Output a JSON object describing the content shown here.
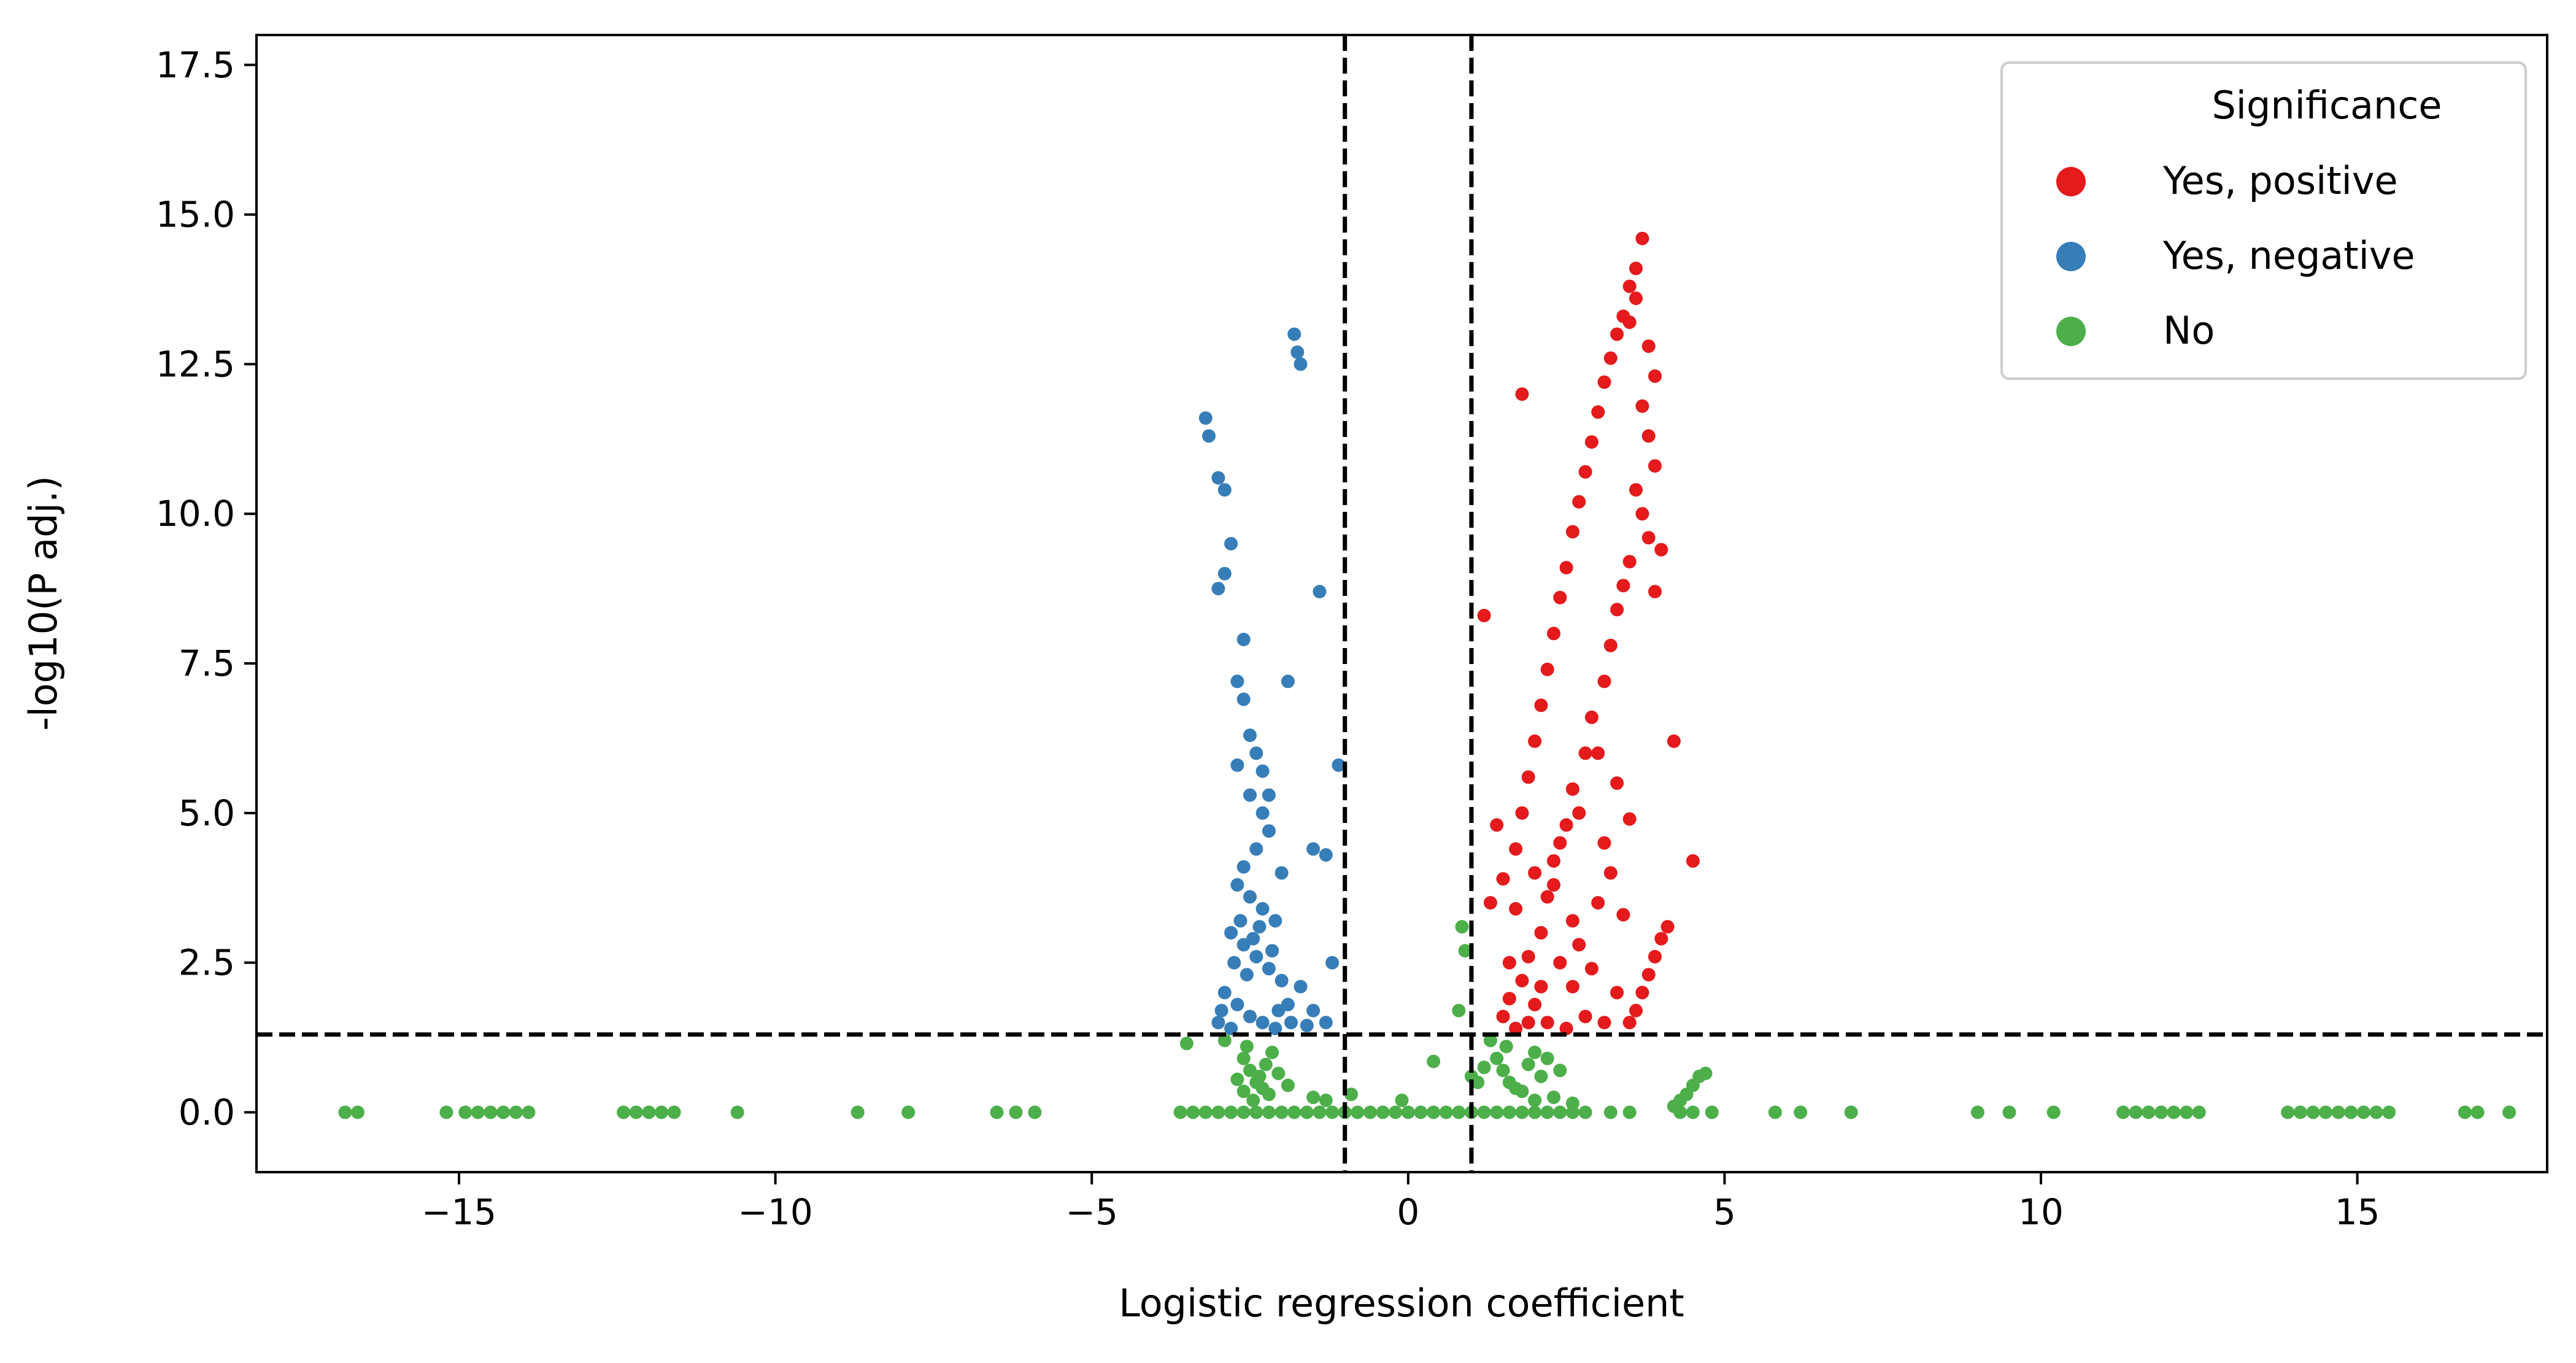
{
  "chart_data": {
    "type": "scatter",
    "xlabel": "Logistic regression coefficient",
    "ylabel": "-log10(P adj.)",
    "xlim": [
      -18.2,
      18.0
    ],
    "ylim": [
      -1.0,
      18.0
    ],
    "xticks": [
      -15,
      -10,
      -5,
      0,
      5,
      10,
      15
    ],
    "xtick_labels": [
      "−15",
      "−10",
      "−5",
      "0",
      "5",
      "10",
      "15"
    ],
    "yticks": [
      0.0,
      2.5,
      5.0,
      7.5,
      10.0,
      12.5,
      15.0,
      17.5
    ],
    "ytick_labels": [
      "0.0",
      "2.5",
      "5.0",
      "7.5",
      "10.0",
      "12.5",
      "15.0",
      "17.5"
    ],
    "reference_lines": {
      "vertical_x": [
        -1,
        1
      ],
      "horizontal_y": [
        1.3
      ]
    },
    "legend": {
      "title": "Significance",
      "placement": "top-right",
      "entries": [
        "Yes, positive",
        "Yes, negative",
        "No"
      ]
    },
    "grid": false,
    "series": [
      {
        "name": "Yes, positive",
        "color": "#e41a1c",
        "points": [
          [
            1.8,
            12.0
          ],
          [
            1.2,
            8.3
          ],
          [
            4.2,
            6.2
          ],
          [
            4.5,
            4.2
          ],
          [
            3.6,
            14.1
          ],
          [
            3.7,
            14.6
          ],
          [
            3.5,
            13.8
          ],
          [
            3.4,
            13.3
          ],
          [
            3.3,
            13.0
          ],
          [
            3.2,
            12.6
          ],
          [
            3.1,
            12.2
          ],
          [
            3.0,
            11.7
          ],
          [
            2.9,
            11.2
          ],
          [
            2.8,
            10.7
          ],
          [
            2.7,
            10.2
          ],
          [
            2.6,
            9.7
          ],
          [
            2.5,
            9.1
          ],
          [
            2.4,
            8.6
          ],
          [
            2.3,
            8.0
          ],
          [
            2.2,
            7.4
          ],
          [
            2.1,
            6.8
          ],
          [
            2.0,
            6.2
          ],
          [
            1.9,
            5.6
          ],
          [
            1.8,
            5.0
          ],
          [
            1.7,
            4.4
          ],
          [
            3.6,
            13.6
          ],
          [
            3.5,
            13.2
          ],
          [
            3.8,
            12.8
          ],
          [
            3.9,
            12.3
          ],
          [
            3.7,
            11.8
          ],
          [
            3.8,
            11.3
          ],
          [
            3.9,
            10.8
          ],
          [
            3.6,
            10.4
          ],
          [
            3.7,
            10.0
          ],
          [
            3.8,
            9.6
          ],
          [
            3.5,
            9.2
          ],
          [
            3.4,
            8.8
          ],
          [
            3.3,
            8.4
          ],
          [
            3.9,
            8.7
          ],
          [
            4.0,
            9.4
          ],
          [
            3.2,
            7.8
          ],
          [
            3.1,
            7.2
          ],
          [
            2.9,
            6.6
          ],
          [
            2.8,
            6.0
          ],
          [
            2.6,
            5.4
          ],
          [
            2.5,
            4.8
          ],
          [
            2.3,
            4.2
          ],
          [
            2.2,
            3.6
          ],
          [
            2.1,
            3.0
          ],
          [
            1.9,
            2.6
          ],
          [
            1.8,
            2.2
          ],
          [
            1.6,
            1.9
          ],
          [
            1.5,
            1.6
          ],
          [
            1.7,
            3.4
          ],
          [
            1.4,
            4.8
          ],
          [
            1.5,
            3.9
          ],
          [
            2.4,
            4.5
          ],
          [
            2.6,
            3.2
          ],
          [
            2.7,
            2.8
          ],
          [
            2.9,
            2.4
          ],
          [
            3.0,
            3.5
          ],
          [
            3.2,
            4.0
          ],
          [
            3.3,
            2.0
          ],
          [
            3.5,
            1.5
          ],
          [
            3.6,
            1.7
          ],
          [
            3.7,
            2.0
          ],
          [
            3.8,
            2.3
          ],
          [
            4.0,
            2.9
          ],
          [
            4.1,
            3.1
          ],
          [
            3.9,
            2.6
          ],
          [
            2.0,
            1.8
          ],
          [
            2.2,
            1.5
          ],
          [
            2.5,
            1.4
          ],
          [
            2.8,
            1.6
          ],
          [
            3.1,
            1.5
          ],
          [
            1.3,
            3.5
          ],
          [
            2.0,
            4.0
          ],
          [
            2.3,
            3.8
          ],
          [
            2.7,
            5.0
          ],
          [
            3.0,
            6.0
          ],
          [
            3.1,
            4.5
          ],
          [
            3.3,
            5.5
          ],
          [
            3.5,
            4.9
          ],
          [
            3.4,
            3.3
          ],
          [
            2.4,
            2.5
          ],
          [
            1.6,
            2.5
          ],
          [
            1.7,
            1.4
          ],
          [
            1.9,
            1.5
          ],
          [
            2.1,
            2.1
          ],
          [
            2.6,
            2.1
          ]
        ]
      },
      {
        "name": "Yes, negative",
        "color": "#377eb8",
        "points": [
          [
            -1.8,
            13.0
          ],
          [
            -1.75,
            12.7
          ],
          [
            -1.7,
            12.5
          ],
          [
            -3.2,
            11.6
          ],
          [
            -3.15,
            11.3
          ],
          [
            -3.0,
            10.6
          ],
          [
            -2.9,
            10.4
          ],
          [
            -2.8,
            9.5
          ],
          [
            -2.9,
            9.0
          ],
          [
            -3.0,
            8.75
          ],
          [
            -1.4,
            8.7
          ],
          [
            -2.6,
            7.9
          ],
          [
            -2.7,
            7.2
          ],
          [
            -2.6,
            6.9
          ],
          [
            -2.5,
            6.3
          ],
          [
            -2.4,
            6.0
          ],
          [
            -2.3,
            5.7
          ],
          [
            -2.7,
            5.8
          ],
          [
            -1.1,
            5.8
          ],
          [
            -2.5,
            5.3
          ],
          [
            -2.3,
            5.0
          ],
          [
            -2.2,
            4.7
          ],
          [
            -2.4,
            4.4
          ],
          [
            -2.6,
            4.1
          ],
          [
            -1.5,
            4.4
          ],
          [
            -1.3,
            4.3
          ],
          [
            -2.7,
            3.8
          ],
          [
            -2.5,
            3.6
          ],
          [
            -2.3,
            3.4
          ],
          [
            -2.1,
            3.2
          ],
          [
            -2.8,
            3.0
          ],
          [
            -2.6,
            2.8
          ],
          [
            -2.4,
            2.6
          ],
          [
            -2.2,
            2.4
          ],
          [
            -2.0,
            2.2
          ],
          [
            -2.9,
            2.0
          ],
          [
            -2.7,
            1.8
          ],
          [
            -2.5,
            1.6
          ],
          [
            -2.3,
            1.5
          ],
          [
            -2.1,
            1.4
          ],
          [
            -1.9,
            1.8
          ],
          [
            -1.7,
            2.1
          ],
          [
            -1.5,
            1.7
          ],
          [
            -1.3,
            1.5
          ],
          [
            -1.2,
            2.5
          ],
          [
            -1.9,
            7.2
          ],
          [
            -2.2,
            5.3
          ],
          [
            -2.0,
            4.0
          ],
          [
            -2.8,
            1.4
          ],
          [
            -3.0,
            1.5
          ],
          [
            -2.65,
            3.2
          ],
          [
            -2.45,
            2.9
          ],
          [
            -2.35,
            3.1
          ],
          [
            -2.55,
            2.3
          ],
          [
            -2.15,
            2.7
          ],
          [
            -2.05,
            1.7
          ],
          [
            -1.85,
            1.5
          ],
          [
            -2.75,
            2.5
          ],
          [
            -2.95,
            1.7
          ],
          [
            -1.6,
            1.45
          ]
        ]
      },
      {
        "name": "No",
        "color": "#4daf4a",
        "points": [
          [
            -16.8,
            0
          ],
          [
            -16.6,
            0
          ],
          [
            -15.2,
            0
          ],
          [
            -14.9,
            0
          ],
          [
            -14.7,
            0
          ],
          [
            -14.5,
            0
          ],
          [
            -14.3,
            0
          ],
          [
            -14.1,
            0
          ],
          [
            -13.9,
            0
          ],
          [
            -12.4,
            0
          ],
          [
            -12.2,
            0
          ],
          [
            -12.0,
            0
          ],
          [
            -11.8,
            0
          ],
          [
            -11.6,
            0
          ],
          [
            -10.6,
            0
          ],
          [
            -8.7,
            0
          ],
          [
            -7.9,
            0
          ],
          [
            -6.5,
            0
          ],
          [
            -6.2,
            0
          ],
          [
            -5.9,
            0
          ],
          [
            -3.6,
            0
          ],
          [
            -3.4,
            0
          ],
          [
            -3.2,
            0
          ],
          [
            -3.0,
            0
          ],
          [
            -2.8,
            0
          ],
          [
            -2.6,
            0
          ],
          [
            -2.4,
            0
          ],
          [
            -2.2,
            0
          ],
          [
            -2.0,
            0
          ],
          [
            -1.8,
            0
          ],
          [
            -1.6,
            0
          ],
          [
            -1.4,
            0
          ],
          [
            -1.2,
            0
          ],
          [
            -1.0,
            0
          ],
          [
            -0.8,
            0
          ],
          [
            -0.6,
            0
          ],
          [
            -0.4,
            0
          ],
          [
            -0.2,
            0
          ],
          [
            0.0,
            0
          ],
          [
            0.2,
            0
          ],
          [
            0.4,
            0
          ],
          [
            0.6,
            0
          ],
          [
            0.8,
            0
          ],
          [
            1.0,
            0
          ],
          [
            1.2,
            0
          ],
          [
            1.4,
            0
          ],
          [
            1.6,
            0
          ],
          [
            1.8,
            0
          ],
          [
            2.0,
            0
          ],
          [
            2.2,
            0
          ],
          [
            2.4,
            0
          ],
          [
            2.6,
            0
          ],
          [
            2.8,
            0
          ],
          [
            3.2,
            0
          ],
          [
            3.5,
            0
          ],
          [
            4.3,
            0
          ],
          [
            4.5,
            0
          ],
          [
            4.8,
            0
          ],
          [
            5.8,
            0
          ],
          [
            6.2,
            0
          ],
          [
            7.0,
            0
          ],
          [
            9.0,
            0
          ],
          [
            9.5,
            0
          ],
          [
            10.2,
            0
          ],
          [
            11.3,
            0
          ],
          [
            11.5,
            0
          ],
          [
            11.7,
            0
          ],
          [
            11.9,
            0
          ],
          [
            12.1,
            0
          ],
          [
            12.3,
            0
          ],
          [
            12.5,
            0
          ],
          [
            13.9,
            0
          ],
          [
            14.1,
            0
          ],
          [
            14.3,
            0
          ],
          [
            14.5,
            0
          ],
          [
            14.7,
            0
          ],
          [
            14.9,
            0
          ],
          [
            15.1,
            0
          ],
          [
            15.3,
            0
          ],
          [
            15.5,
            0
          ],
          [
            16.7,
            0
          ],
          [
            16.9,
            0
          ],
          [
            17.4,
            0
          ],
          [
            -3.5,
            1.15
          ],
          [
            -2.9,
            1.2
          ],
          [
            -2.6,
            0.9
          ],
          [
            -2.5,
            0.7
          ],
          [
            -2.4,
            0.5
          ],
          [
            -2.3,
            0.4
          ],
          [
            -2.2,
            0.3
          ],
          [
            -2.6,
            0.35
          ],
          [
            -2.45,
            0.2
          ],
          [
            -2.35,
            0.6
          ],
          [
            -2.25,
            0.8
          ],
          [
            -2.15,
            1.0
          ],
          [
            -2.05,
            0.65
          ],
          [
            -1.9,
            0.45
          ],
          [
            -2.7,
            0.55
          ],
          [
            -2.55,
            1.1
          ],
          [
            -1.5,
            0.25
          ],
          [
            -1.3,
            0.2
          ],
          [
            -0.9,
            0.3
          ],
          [
            -0.1,
            0.2
          ],
          [
            0.4,
            0.85
          ],
          [
            0.8,
            1.7
          ],
          [
            0.85,
            3.1
          ],
          [
            0.9,
            2.7
          ],
          [
            1.0,
            0.6
          ],
          [
            1.3,
            1.2
          ],
          [
            1.4,
            0.9
          ],
          [
            1.5,
            0.7
          ],
          [
            1.6,
            0.5
          ],
          [
            1.7,
            0.4
          ],
          [
            1.8,
            0.35
          ],
          [
            1.9,
            0.8
          ],
          [
            2.0,
            1.0
          ],
          [
            2.1,
            0.6
          ],
          [
            2.2,
            0.9
          ],
          [
            2.3,
            0.25
          ],
          [
            2.4,
            0.7
          ],
          [
            1.2,
            0.75
          ],
          [
            1.1,
            0.5
          ],
          [
            2.0,
            0.2
          ],
          [
            4.2,
            0.1
          ],
          [
            4.3,
            0.2
          ],
          [
            4.4,
            0.3
          ],
          [
            4.5,
            0.45
          ],
          [
            4.6,
            0.6
          ],
          [
            4.7,
            0.65
          ],
          [
            2.6,
            0.15
          ],
          [
            1.55,
            1.1
          ]
        ]
      }
    ]
  }
}
